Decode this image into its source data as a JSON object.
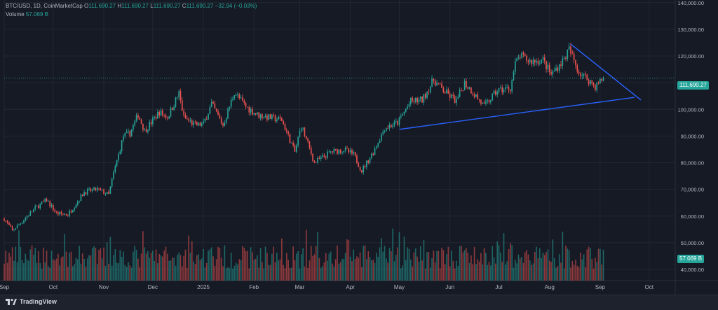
{
  "header": {
    "symbol": "BTC/USD, 1D, CoinMarketCap",
    "o_label": "O",
    "o_value": "111,690.27",
    "h_label": "H",
    "h_value": "111,690.27",
    "l_label": "L",
    "l_value": "111,690.27",
    "c_label": "C",
    "c_value": "111,690.27",
    "change": "−32.94 (−0.03%)",
    "volume_label": "Volume",
    "volume_value": "57.069 B"
  },
  "price_tag": "111,690.27",
  "volume_tag": "57.069 B",
  "logo_text": "TradingView",
  "colors": {
    "up": "#26a69a",
    "down": "#ef5350",
    "trendline": "#2962ff",
    "background": "#161a25",
    "grid": "#232733",
    "text": "#b2b5be"
  },
  "chart_data": {
    "type": "candlestick",
    "y_axis_ticks": [
      "140,000.00",
      "130,000.00",
      "120,000.00",
      "110,000.00",
      "100,000.00",
      "90,000.00",
      "80,000.00",
      "70,000.00",
      "60,000.00",
      "50,000.00",
      "40,000.00"
    ],
    "y_tick_values": [
      140000,
      130000,
      120000,
      110000,
      100000,
      90000,
      80000,
      70000,
      60000,
      50000,
      40000
    ],
    "ylim": [
      35800,
      141000
    ],
    "xlim": [
      "2024-09-01",
      "2025-10-17"
    ],
    "x_axis_ticks": [
      {
        "label": "Sep",
        "date": "2024-09-01"
      },
      {
        "label": "Oct",
        "date": "2024-10-01"
      },
      {
        "label": "Nov",
        "date": "2024-11-01"
      },
      {
        "label": "Dec",
        "date": "2024-12-01"
      },
      {
        "label": "2025",
        "date": "2025-01-01"
      },
      {
        "label": "Feb",
        "date": "2025-02-01"
      },
      {
        "label": "Mar",
        "date": "2025-03-01"
      },
      {
        "label": "Apr",
        "date": "2025-04-01"
      },
      {
        "label": "May",
        "date": "2025-05-01"
      },
      {
        "label": "Jun",
        "date": "2025-06-01"
      },
      {
        "label": "Jul",
        "date": "2025-07-01"
      },
      {
        "label": "Aug",
        "date": "2025-08-01"
      },
      {
        "label": "Sep",
        "date": "2025-09-01"
      },
      {
        "label": "Oct",
        "date": "2025-10-01"
      }
    ],
    "close_path": [
      [
        "2024-09-01",
        59000
      ],
      [
        "2024-09-06",
        54500
      ],
      [
        "2024-09-12",
        58000
      ],
      [
        "2024-09-20",
        63000
      ],
      [
        "2024-09-27",
        66000
      ],
      [
        "2024-10-03",
        61000
      ],
      [
        "2024-10-10",
        60500
      ],
      [
        "2024-10-20",
        69000
      ],
      [
        "2024-10-28",
        70000
      ],
      [
        "2024-11-04",
        68000
      ],
      [
        "2024-11-07",
        76000
      ],
      [
        "2024-11-13",
        90000
      ],
      [
        "2024-11-17",
        91000
      ],
      [
        "2024-11-22",
        98000
      ],
      [
        "2024-11-26",
        92000
      ],
      [
        "2024-12-05",
        99000
      ],
      [
        "2024-12-10",
        97000
      ],
      [
        "2024-12-17",
        106000
      ],
      [
        "2024-12-20",
        97000
      ],
      [
        "2024-12-27",
        94000
      ],
      [
        "2025-01-01",
        94500
      ],
      [
        "2025-01-06",
        102000
      ],
      [
        "2025-01-13",
        94000
      ],
      [
        "2025-01-20",
        106500
      ],
      [
        "2025-01-27",
        101000
      ],
      [
        "2025-02-03",
        98000
      ],
      [
        "2025-02-10",
        97000
      ],
      [
        "2025-02-18",
        96000
      ],
      [
        "2025-02-26",
        84000
      ],
      [
        "2025-03-02",
        94000
      ],
      [
        "2025-03-10",
        80000
      ],
      [
        "2025-03-20",
        84000
      ],
      [
        "2025-03-28",
        85000
      ],
      [
        "2025-04-03",
        83000
      ],
      [
        "2025-04-08",
        77000
      ],
      [
        "2025-04-15",
        84000
      ],
      [
        "2025-04-22",
        93000
      ],
      [
        "2025-04-30",
        95000
      ],
      [
        "2025-05-08",
        103000
      ],
      [
        "2025-05-15",
        103500
      ],
      [
        "2025-05-22",
        111000
      ],
      [
        "2025-05-28",
        107000
      ],
      [
        "2025-06-05",
        103000
      ],
      [
        "2025-06-10",
        110000
      ],
      [
        "2025-06-17",
        105000
      ],
      [
        "2025-06-22",
        101000
      ],
      [
        "2025-06-30",
        107000
      ],
      [
        "2025-07-08",
        108000
      ],
      [
        "2025-07-11",
        117000
      ],
      [
        "2025-07-14",
        120000
      ],
      [
        "2025-07-20",
        118000
      ],
      [
        "2025-07-28",
        118500
      ],
      [
        "2025-08-02",
        113000
      ],
      [
        "2025-08-10",
        119000
      ],
      [
        "2025-08-13",
        122500
      ],
      [
        "2025-08-19",
        114000
      ],
      [
        "2025-08-25",
        111000
      ],
      [
        "2025-08-29",
        108500
      ],
      [
        "2025-09-03",
        111690
      ]
    ],
    "volume_scale_max": 65000000000,
    "trendlines": [
      {
        "name": "support",
        "from": [
          "2025-05-01",
          92500
        ],
        "to": [
          "2025-09-22",
          104500
        ]
      },
      {
        "name": "resistance",
        "from": [
          "2025-08-14",
          124500
        ],
        "to": [
          "2025-09-26",
          103500
        ]
      }
    ],
    "last_price": 111690.27,
    "last_volume": "57.069 B"
  }
}
